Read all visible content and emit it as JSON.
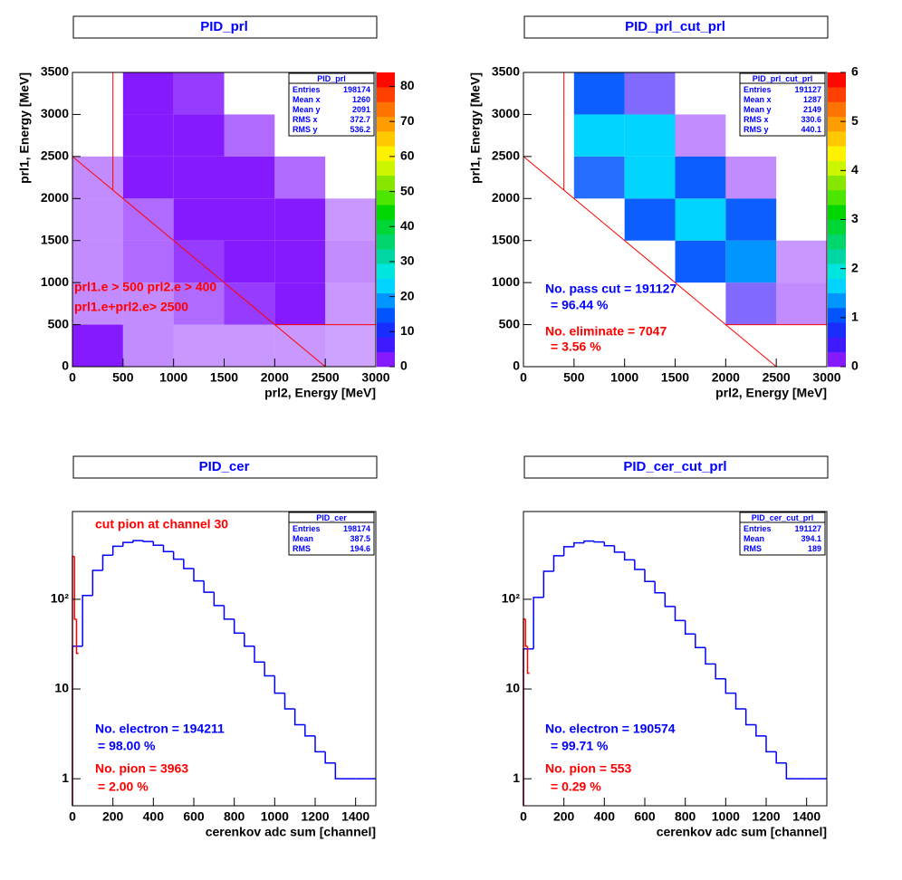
{
  "chart_data": [
    {
      "type": "heatmap",
      "title": "PID_prl",
      "xlabel": "prl2, Energy [MeV]",
      "ylabel": "prl1, Energy [MeV]",
      "xlim": [
        0,
        3000
      ],
      "ylim": [
        0,
        3500
      ],
      "xticks": [
        0,
        500,
        1000,
        1500,
        2000,
        2500,
        3000
      ],
      "yticks": [
        0,
        500,
        1000,
        1500,
        2000,
        2500,
        3000,
        3500
      ],
      "zlim": [
        0,
        84
      ],
      "zticks": [
        0,
        10,
        20,
        30,
        40,
        50,
        60,
        70,
        80
      ],
      "xbins": [
        0,
        500,
        1000,
        1500,
        2000,
        2500,
        3000
      ],
      "ybins": [
        0,
        500,
        1000,
        1500,
        2000,
        2500,
        3000,
        3500
      ],
      "z": [
        [
          2,
          0.3,
          0.2,
          0.2,
          0.2,
          0.1
        ],
        [
          0.3,
          0.3,
          0.6,
          1,
          1.5,
          0.2
        ],
        [
          0.3,
          0.6,
          1,
          3,
          3.5,
          0.3
        ],
        [
          0.3,
          0.6,
          3,
          4,
          3,
          0.2
        ],
        [
          0.3,
          2,
          4,
          3.5,
          0.6,
          0
        ],
        [
          0,
          3.5,
          3.5,
          0.6,
          0,
          0
        ],
        [
          0,
          3,
          1,
          0,
          0,
          0
        ]
      ],
      "cuts": {
        "x_min": 400,
        "y_min": 500,
        "sum_min": 2500
      },
      "cut_color": "#ff0000",
      "stats": {
        "name": "PID_prl",
        "rows": [
          [
            "Entries",
            198174
          ],
          [
            "Mean x",
            1260
          ],
          [
            "Mean y",
            2091
          ],
          [
            "RMS x",
            372.7
          ],
          [
            "RMS y",
            536.2
          ]
        ]
      },
      "annotations": [
        {
          "text": "prl1.e > 500 prl2.e > 400",
          "color": "#ff0000"
        },
        {
          "text": "prl1.e+prl2.e> 2500",
          "color": "#ff0000"
        }
      ],
      "palette": [
        "hsl(268,100%,55%)",
        "hsl(250,100%,55%)",
        "hsl(235,100%,55%)",
        "hsl(220,100%,50%)",
        "hsl(205,100%,50%)",
        "hsl(190,100%,50%)",
        "hsl(178,100%,45%)",
        "hsl(165,100%,42%)",
        "hsl(150,100%,42%)",
        "hsl(135,100%,42%)",
        "hsl(120,100%,42%)",
        "hsl(100,100%,45%)",
        "hsl(85,100%,45%)",
        "hsl(70,100%,48%)",
        "hsl(57,100%,50%)",
        "hsl(47,100%,50%)",
        "hsl(37,100%,50%)",
        "hsl(27,100%,50%)",
        "hsl(15,100%,50%)",
        "hsl(2,100%,50%)"
      ]
    },
    {
      "type": "heatmap",
      "title": "PID_prl_cut_prl",
      "xlabel": "prl2, Energy [MeV]",
      "ylabel": "prl1, Energy [MeV]",
      "xlim": [
        0,
        3000
      ],
      "ylim": [
        0,
        3500
      ],
      "xticks": [
        0,
        500,
        1000,
        1500,
        2000,
        2500,
        3000
      ],
      "yticks": [
        0,
        500,
        1000,
        1500,
        2000,
        2500,
        3000,
        3500
      ],
      "zlim": [
        0,
        6
      ],
      "zticks": [
        0,
        1,
        2,
        3,
        4,
        5,
        6
      ],
      "xbins": [
        0,
        500,
        1000,
        1500,
        2000,
        2500,
        3000
      ],
      "ybins": [
        0,
        500,
        1000,
        1500,
        2000,
        2500,
        3000,
        3500
      ],
      "z": [
        [
          0,
          0,
          0,
          0,
          0,
          0
        ],
        [
          0,
          0,
          0,
          0,
          0.6,
          0.3
        ],
        [
          0,
          0,
          0,
          1.2,
          1.3,
          0.2
        ],
        [
          0,
          0,
          1.2,
          1.6,
          1.2,
          0
        ],
        [
          0,
          1,
          1.7,
          1.2,
          0.3,
          0
        ],
        [
          0,
          1.5,
          1.5,
          0.3,
          0,
          0
        ],
        [
          0,
          1.2,
          0.6,
          0,
          0,
          0
        ]
      ],
      "cuts": {
        "x_min": 400,
        "y_min": 500,
        "sum_min": 2500
      },
      "cut_color": "#ff0000",
      "stats": {
        "name": "PID_prl_cut_prl",
        "rows": [
          [
            "Entries",
            191127
          ],
          [
            "Mean x",
            1287
          ],
          [
            "Mean y",
            2149
          ],
          [
            "RMS x",
            330.6
          ],
          [
            "RMS y",
            440.1
          ]
        ]
      },
      "annotations": [
        {
          "text": "No. pass cut = 191127",
          "color": "#0000ff"
        },
        {
          "text": "= 96.44 %",
          "color": "#0000ff"
        },
        {
          "text": "No. eliminate = 7047",
          "color": "#ff0000"
        },
        {
          "text": "= 3.56 %",
          "color": "#ff0000"
        }
      ],
      "palette": [
        "hsl(268,100%,55%)",
        "hsl(250,100%,55%)",
        "hsl(235,100%,55%)",
        "hsl(220,100%,50%)",
        "hsl(205,100%,50%)",
        "hsl(190,100%,50%)",
        "hsl(178,100%,45%)",
        "hsl(165,100%,42%)",
        "hsl(150,100%,42%)",
        "hsl(135,100%,42%)",
        "hsl(120,100%,42%)",
        "hsl(100,100%,45%)",
        "hsl(85,100%,45%)",
        "hsl(70,100%,48%)",
        "hsl(57,100%,50%)",
        "hsl(47,100%,50%)",
        "hsl(37,100%,50%)",
        "hsl(27,100%,50%)",
        "hsl(15,100%,50%)",
        "hsl(2,100%,50%)"
      ]
    },
    {
      "type": "histogram",
      "title": "PID_cer",
      "xlabel": "cerenkov adc sum [channel]",
      "log_y": true,
      "xlim": [
        0,
        1500
      ],
      "ylim": [
        0.5,
        950
      ],
      "xticks": [
        0,
        200,
        400,
        600,
        800,
        1000,
        1200,
        1400
      ],
      "yticks": [
        1,
        10,
        {
          "value": 100,
          "label": "10²"
        }
      ],
      "series": [
        {
          "color": "#0000ff",
          "bins": [
            0,
            50,
            100,
            150,
            200,
            250,
            300,
            350,
            400,
            450,
            500,
            550,
            600,
            650,
            700,
            750,
            800,
            850,
            900,
            950,
            1000,
            1050,
            1100,
            1150,
            1200,
            1250,
            1300,
            1350,
            1400,
            1450,
            1500
          ],
          "values": [
            30,
            110,
            210,
            310,
            390,
            430,
            450,
            440,
            400,
            340,
            280,
            220,
            160,
            120,
            85,
            60,
            42,
            30,
            20,
            14,
            9,
            6,
            4,
            3,
            2,
            1.5,
            1,
            1,
            1,
            1
          ]
        },
        {
          "color": "#ff0000",
          "bins": [
            0,
            10,
            20,
            30
          ],
          "values": [
            300,
            60,
            25
          ]
        }
      ],
      "stats": {
        "name": "PID_cer",
        "rows": [
          [
            "Entries",
            198174
          ],
          [
            "Mean",
            387.5
          ],
          [
            "RMS",
            194.6
          ]
        ]
      },
      "annotations": [
        {
          "text": "cut pion at channel 30",
          "color": "#ff0000"
        },
        {
          "text": "No. electron = 194211",
          "color": "#0000ff"
        },
        {
          "text": "= 98.00 %",
          "color": "#0000ff"
        },
        {
          "text": "No. pion = 3963",
          "color": "#ff0000"
        },
        {
          "text": "= 2.00 %",
          "color": "#ff0000"
        }
      ]
    },
    {
      "type": "histogram",
      "title": "PID_cer_cut_prl",
      "xlabel": "cerenkov adc sum [channel]",
      "log_y": true,
      "xlim": [
        0,
        1500
      ],
      "ylim": [
        0.5,
        950
      ],
      "xticks": [
        0,
        200,
        400,
        600,
        800,
        1000,
        1200,
        1400
      ],
      "yticks": [
        1,
        10,
        {
          "value": 100,
          "label": "10²"
        }
      ],
      "series": [
        {
          "color": "#0000ff",
          "bins": [
            0,
            50,
            100,
            150,
            200,
            250,
            300,
            350,
            400,
            450,
            500,
            550,
            600,
            650,
            700,
            750,
            800,
            850,
            900,
            950,
            1000,
            1050,
            1100,
            1150,
            1200,
            1250,
            1300,
            1350,
            1400,
            1450,
            1500
          ],
          "values": [
            28,
            105,
            205,
            305,
            385,
            425,
            445,
            435,
            395,
            335,
            275,
            215,
            158,
            118,
            83,
            58,
            41,
            29,
            19,
            13,
            9,
            6,
            4,
            3,
            2,
            1.5,
            1,
            1,
            1,
            1
          ]
        },
        {
          "color": "#ff0000",
          "bins": [
            0,
            10,
            20,
            30
          ],
          "values": [
            60,
            30,
            15
          ]
        }
      ],
      "stats": {
        "name": "PID_cer_cut_prl",
        "rows": [
          [
            "Entries",
            191127
          ],
          [
            "Mean",
            394.1
          ],
          [
            "RMS",
            189
          ]
        ]
      },
      "annotations": [
        {
          "text": "No. electron = 190574",
          "color": "#0000ff"
        },
        {
          "text": "= 99.71 %",
          "color": "#0000ff"
        },
        {
          "text": "No. pion = 553",
          "color": "#ff0000"
        },
        {
          "text": "= 0.29 %",
          "color": "#ff0000"
        }
      ]
    }
  ]
}
